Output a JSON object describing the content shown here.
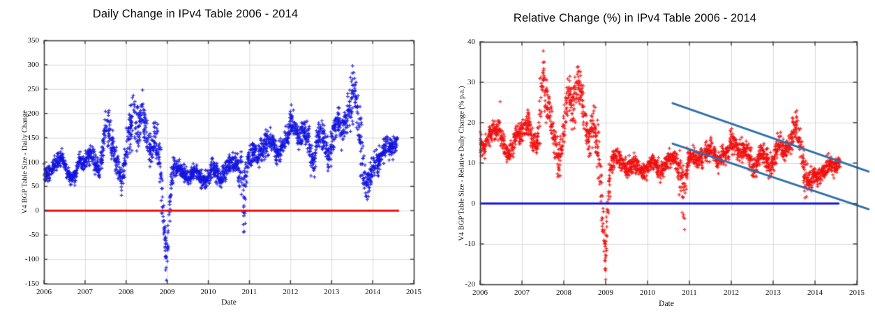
{
  "palette": {
    "background": "#ffffff",
    "grid": "#d9d9d9",
    "frame": "#3c3c3c",
    "text": "#111111",
    "blue_marker": "#1414dd",
    "red_marker": "#ee1111",
    "trend_blue": "#2e6fad"
  },
  "charts": [
    {
      "id": "daily-change",
      "type": "scatter",
      "title": "Daily Change in IPv4 Table 2006 - 2014",
      "xlabel": "Date",
      "ylabel": "V4 BGP Table Size - Daily Change",
      "xlim": [
        2006,
        2015
      ],
      "ylim": [
        -150,
        350
      ],
      "xticks": [
        2006,
        2007,
        2008,
        2009,
        2010,
        2011,
        2012,
        2013,
        2014,
        2015
      ],
      "yticks": [
        -150,
        -100,
        -50,
        0,
        50,
        100,
        150,
        200,
        250,
        300,
        350
      ],
      "grid": true,
      "marker": {
        "shape": "plus",
        "color": "#1414dd",
        "size": 5
      },
      "seed": 7,
      "points_per_step": 28,
      "zero_line": {
        "y": 0,
        "color": "#ee1111",
        "x_start": 2006.0,
        "x_end": 2014.64,
        "width": 3
      },
      "trend_lines": [],
      "anchors": [
        [
          2006.0,
          78,
          8
        ],
        [
          2006.08,
          70,
          8
        ],
        [
          2006.17,
          85,
          8
        ],
        [
          2006.25,
          95,
          8
        ],
        [
          2006.35,
          105,
          8
        ],
        [
          2006.45,
          108,
          8
        ],
        [
          2006.55,
          85,
          8
        ],
        [
          2006.67,
          65,
          8
        ],
        [
          2006.75,
          72,
          8
        ],
        [
          2006.87,
          105,
          8
        ],
        [
          2006.95,
          95,
          8
        ],
        [
          2007.05,
          110,
          10
        ],
        [
          2007.15,
          120,
          9
        ],
        [
          2007.25,
          95,
          10
        ],
        [
          2007.35,
          82,
          8
        ],
        [
          2007.44,
          140,
          22
        ],
        [
          2007.52,
          185,
          22
        ],
        [
          2007.6,
          150,
          18
        ],
        [
          2007.7,
          120,
          14
        ],
        [
          2007.8,
          90,
          14
        ],
        [
          2007.88,
          60,
          12
        ],
        [
          2007.95,
          80,
          14
        ],
        [
          2008.0,
          120,
          20
        ],
        [
          2008.1,
          170,
          25
        ],
        [
          2008.2,
          200,
          25
        ],
        [
          2008.3,
          165,
          25
        ],
        [
          2008.4,
          210,
          25
        ],
        [
          2008.5,
          150,
          18
        ],
        [
          2008.6,
          115,
          14
        ],
        [
          2008.7,
          155,
          18
        ],
        [
          2008.8,
          120,
          18
        ],
        [
          2008.88,
          40,
          30
        ],
        [
          2008.94,
          -60,
          28
        ],
        [
          2009.0,
          -95,
          12
        ],
        [
          2009.04,
          -20,
          28
        ],
        [
          2009.1,
          60,
          18
        ],
        [
          2009.18,
          92,
          8
        ],
        [
          2009.3,
          88,
          8
        ],
        [
          2009.4,
          76,
          8
        ],
        [
          2009.5,
          66,
          8
        ],
        [
          2009.6,
          74,
          8
        ],
        [
          2009.7,
          82,
          8
        ],
        [
          2009.8,
          68,
          8
        ],
        [
          2009.9,
          60,
          8
        ],
        [
          2010.0,
          72,
          10
        ],
        [
          2010.1,
          90,
          10
        ],
        [
          2010.2,
          82,
          10
        ],
        [
          2010.3,
          62,
          9
        ],
        [
          2010.4,
          80,
          10
        ],
        [
          2010.5,
          95,
          10
        ],
        [
          2010.6,
          100,
          10
        ],
        [
          2010.7,
          95,
          10
        ],
        [
          2010.8,
          60,
          32
        ],
        [
          2010.88,
          35,
          38
        ],
        [
          2010.95,
          90,
          12
        ],
        [
          2011.0,
          110,
          12
        ],
        [
          2011.1,
          122,
          11
        ],
        [
          2011.2,
          112,
          11
        ],
        [
          2011.3,
          125,
          11
        ],
        [
          2011.4,
          138,
          12
        ],
        [
          2011.5,
          148,
          12
        ],
        [
          2011.6,
          138,
          11
        ],
        [
          2011.65,
          112,
          11
        ],
        [
          2011.75,
          125,
          11
        ],
        [
          2011.85,
          135,
          11
        ],
        [
          2011.95,
          160,
          13
        ],
        [
          2012.0,
          185,
          15
        ],
        [
          2012.1,
          165,
          14
        ],
        [
          2012.2,
          152,
          13
        ],
        [
          2012.3,
          168,
          14
        ],
        [
          2012.4,
          155,
          14
        ],
        [
          2012.5,
          115,
          18
        ],
        [
          2012.57,
          90,
          14
        ],
        [
          2012.65,
          150,
          14
        ],
        [
          2012.75,
          158,
          13
        ],
        [
          2012.85,
          132,
          14
        ],
        [
          2012.95,
          112,
          18
        ],
        [
          2013.05,
          158,
          16
        ],
        [
          2013.15,
          190,
          16
        ],
        [
          2013.25,
          160,
          15
        ],
        [
          2013.35,
          178,
          16
        ],
        [
          2013.45,
          215,
          22
        ],
        [
          2013.55,
          250,
          26
        ],
        [
          2013.65,
          185,
          28
        ],
        [
          2013.75,
          90,
          28
        ],
        [
          2013.85,
          48,
          14
        ],
        [
          2013.95,
          72,
          16
        ],
        [
          2014.05,
          88,
          14
        ],
        [
          2014.15,
          102,
          13
        ],
        [
          2014.25,
          122,
          13
        ],
        [
          2014.35,
          140,
          12
        ],
        [
          2014.45,
          128,
          12
        ],
        [
          2014.55,
          142,
          11
        ]
      ],
      "outliers": [
        [
          2008.98,
          -143
        ],
        [
          2008.96,
          -122
        ],
        [
          2010.86,
          -44
        ]
      ]
    },
    {
      "id": "relative-change",
      "type": "scatter",
      "title": "Relative Change (%) in IPv4 Table 2006 - 2014",
      "xlabel": "Date",
      "ylabel": "V4 BGP Table Size - Relative Daily Change (% p.a.)",
      "xlim": [
        2006,
        2015
      ],
      "ylim": [
        -20,
        40
      ],
      "xticks": [
        2006,
        2007,
        2008,
        2009,
        2010,
        2011,
        2012,
        2013,
        2014,
        2015
      ],
      "yticks": [
        -20,
        -10,
        0,
        10,
        20,
        30,
        40
      ],
      "grid": true,
      "marker": {
        "shape": "plus",
        "color": "#ee1111",
        "size": 5
      },
      "seed": 13,
      "points_per_step": 28,
      "zero_line": {
        "y": 0,
        "color": "#1111ee",
        "x_start": 2006.0,
        "x_end": 2014.58,
        "width": 3
      },
      "trend_lines": [
        {
          "x1": 2010.6,
          "y1": 24.8,
          "x2": 2015.28,
          "y2": 7.9,
          "color": "#2e6fad",
          "width": 3
        },
        {
          "x1": 2010.6,
          "y1": 14.8,
          "x2": 2015.28,
          "y2": -1.4,
          "color": "#2e6fad",
          "width": 3
        }
      ],
      "anchors": [
        [
          2006.0,
          14.5,
          1.3
        ],
        [
          2006.08,
          13,
          1.3
        ],
        [
          2006.17,
          15.5,
          1.3
        ],
        [
          2006.25,
          17,
          1.3
        ],
        [
          2006.35,
          18.5,
          1.3
        ],
        [
          2006.45,
          19,
          1.3
        ],
        [
          2006.55,
          15,
          1.3
        ],
        [
          2006.67,
          12,
          1.3
        ],
        [
          2006.75,
          13,
          1.3
        ],
        [
          2006.87,
          18,
          1.3
        ],
        [
          2006.95,
          16.5,
          1.3
        ],
        [
          2007.05,
          18.5,
          1.5
        ],
        [
          2007.15,
          20,
          1.4
        ],
        [
          2007.25,
          16,
          1.5
        ],
        [
          2007.35,
          14,
          1.4
        ],
        [
          2007.44,
          24,
          3.5
        ],
        [
          2007.52,
          31,
          3
        ],
        [
          2007.6,
          25,
          2.8
        ],
        [
          2007.7,
          20,
          2.2
        ],
        [
          2007.8,
          15,
          2.2
        ],
        [
          2007.88,
          10,
          1.8
        ],
        [
          2007.95,
          13,
          2.2
        ],
        [
          2008.0,
          19,
          3
        ],
        [
          2008.1,
          27,
          3
        ],
        [
          2008.2,
          24,
          3
        ],
        [
          2008.3,
          28,
          3
        ],
        [
          2008.4,
          29,
          3
        ],
        [
          2008.5,
          21,
          2.5
        ],
        [
          2008.6,
          16,
          2
        ],
        [
          2008.7,
          20,
          2.5
        ],
        [
          2008.8,
          15,
          2.5
        ],
        [
          2008.88,
          5,
          4
        ],
        [
          2008.94,
          -8,
          4
        ],
        [
          2009.0,
          -13,
          2
        ],
        [
          2009.04,
          -2,
          4
        ],
        [
          2009.1,
          7,
          2.5
        ],
        [
          2009.18,
          11.5,
          1.1
        ],
        [
          2009.3,
          11,
          1.1
        ],
        [
          2009.4,
          9.5,
          1.1
        ],
        [
          2009.5,
          8.5,
          1.1
        ],
        [
          2009.6,
          9.5,
          1.1
        ],
        [
          2009.7,
          10.5,
          1.1
        ],
        [
          2009.8,
          8.5,
          1.1
        ],
        [
          2009.9,
          7.5,
          1.1
        ],
        [
          2010.0,
          9,
          1.2
        ],
        [
          2010.1,
          11,
          1.2
        ],
        [
          2010.2,
          10,
          1.2
        ],
        [
          2010.3,
          7.5,
          1.1
        ],
        [
          2010.4,
          9.5,
          1.2
        ],
        [
          2010.5,
          11,
          1.2
        ],
        [
          2010.6,
          11.5,
          1.2
        ],
        [
          2010.7,
          11,
          1.2
        ],
        [
          2010.8,
          7,
          3.8
        ],
        [
          2010.88,
          4,
          4.5
        ],
        [
          2010.95,
          10,
          1.4
        ],
        [
          2011.0,
          11,
          1.3
        ],
        [
          2011.1,
          12,
          1.2
        ],
        [
          2011.2,
          10.5,
          1.2
        ],
        [
          2011.3,
          11.5,
          1.2
        ],
        [
          2011.4,
          12.5,
          1.2
        ],
        [
          2011.5,
          13.5,
          1.2
        ],
        [
          2011.6,
          12.5,
          1.2
        ],
        [
          2011.65,
          10,
          1.2
        ],
        [
          2011.75,
          11,
          1.2
        ],
        [
          2011.85,
          12,
          1.2
        ],
        [
          2011.95,
          14,
          1.3
        ],
        [
          2012.0,
          16,
          1.4
        ],
        [
          2012.1,
          14,
          1.3
        ],
        [
          2012.2,
          13,
          1.2
        ],
        [
          2012.3,
          13.5,
          1.3
        ],
        [
          2012.4,
          12.5,
          1.3
        ],
        [
          2012.5,
          9.5,
          1.6
        ],
        [
          2012.57,
          7.5,
          1.3
        ],
        [
          2012.65,
          12,
          1.3
        ],
        [
          2012.75,
          12.5,
          1.2
        ],
        [
          2012.85,
          10.5,
          1.3
        ],
        [
          2012.95,
          9,
          1.6
        ],
        [
          2013.05,
          12.5,
          1.4
        ],
        [
          2013.15,
          15,
          1.4
        ],
        [
          2013.25,
          13,
          1.3
        ],
        [
          2013.35,
          14,
          1.4
        ],
        [
          2013.45,
          16.5,
          1.9
        ],
        [
          2013.55,
          20,
          2.2
        ],
        [
          2013.65,
          14,
          2.4
        ],
        [
          2013.75,
          7,
          2.4
        ],
        [
          2013.85,
          5,
          1.3
        ],
        [
          2013.95,
          6.5,
          1.4
        ],
        [
          2014.05,
          6,
          1.3
        ],
        [
          2014.15,
          7.5,
          1.2
        ],
        [
          2014.25,
          8.5,
          1.2
        ],
        [
          2014.35,
          10,
          1.1
        ],
        [
          2014.45,
          9,
          1.1
        ],
        [
          2014.55,
          9.5,
          1.1
        ]
      ],
      "outliers": [
        [
          2009.0,
          -18.8
        ],
        [
          2008.98,
          -16.2
        ],
        [
          2006.48,
          25.2
        ],
        [
          2010.86,
          -2.8
        ]
      ]
    }
  ]
}
